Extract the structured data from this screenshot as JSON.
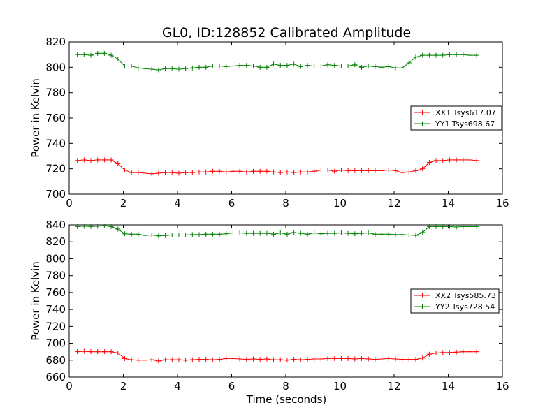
{
  "figure": {
    "title": "GL0, ID:128852 Calibrated Amplitude",
    "xlabel": "Time (seconds)"
  },
  "chart_data": [
    {
      "type": "line",
      "ylabel": "Power in Kelvin",
      "xlim": [
        0,
        16
      ],
      "ylim": [
        700,
        820
      ],
      "xticks": [
        "0",
        "2",
        "4",
        "6",
        "8",
        "10",
        "12",
        "14",
        "16"
      ],
      "yticks": [
        "700",
        "720",
        "740",
        "760",
        "780",
        "800",
        "820"
      ],
      "grid": false,
      "legend": "center-right",
      "x": [
        0.3,
        0.55,
        0.8,
        1.05,
        1.3,
        1.55,
        1.8,
        2.05,
        2.3,
        2.55,
        2.8,
        3.05,
        3.3,
        3.55,
        3.8,
        4.05,
        4.3,
        4.55,
        4.8,
        5.05,
        5.3,
        5.55,
        5.8,
        6.05,
        6.3,
        6.55,
        6.8,
        7.05,
        7.3,
        7.55,
        7.8,
        8.05,
        8.3,
        8.55,
        8.8,
        9.05,
        9.3,
        9.55,
        9.8,
        10.05,
        10.3,
        10.55,
        10.8,
        11.05,
        11.3,
        11.55,
        11.8,
        12.05,
        12.3,
        12.55,
        12.8,
        13.05,
        13.3,
        13.55,
        13.8,
        14.05,
        14.3,
        14.55,
        14.8,
        15.05
      ],
      "series": [
        {
          "name": "XX1 Tsys617.07",
          "color": "#ff0000",
          "values": [
            726.5,
            727,
            726.5,
            727,
            727,
            727,
            724,
            719,
            717,
            717,
            716.5,
            716,
            716.5,
            717,
            717,
            716.5,
            717,
            717,
            717.5,
            717.5,
            718,
            718,
            717.5,
            718,
            718,
            717.5,
            718,
            718,
            718,
            717.5,
            717,
            717.5,
            717,
            717.5,
            717.5,
            718,
            719,
            719,
            718,
            719,
            718.5,
            718.5,
            718.5,
            718.5,
            718.5,
            718.5,
            719,
            718.5,
            717,
            717.5,
            718.5,
            720,
            725,
            726.5,
            726.5,
            727,
            727,
            727,
            727,
            726.5
          ]
        },
        {
          "name": "YY1 Tsys698.67",
          "color": "#008000",
          "values": [
            810,
            810,
            809.5,
            811,
            811,
            809.5,
            806.5,
            801,
            801,
            799.5,
            799,
            798.5,
            798,
            799,
            799,
            798.5,
            799,
            799.5,
            800,
            800,
            801,
            801,
            800.5,
            801,
            801.5,
            801.5,
            801,
            800,
            800,
            802.5,
            801.5,
            801.5,
            802.5,
            800.5,
            801.5,
            801,
            801,
            802,
            801.5,
            801,
            801,
            802,
            800,
            801,
            800.5,
            800,
            800.5,
            799.5,
            799.5,
            803.5,
            808,
            809.5,
            809.5,
            809.5,
            809.5,
            810,
            810,
            810,
            809.5,
            809.5
          ]
        }
      ]
    },
    {
      "type": "line",
      "ylabel": "Power in Kelvin",
      "xlabel": "Time (seconds)",
      "xlim": [
        0,
        16
      ],
      "ylim": [
        660,
        840
      ],
      "xticks": [
        "0",
        "2",
        "4",
        "6",
        "8",
        "10",
        "12",
        "14",
        "16"
      ],
      "yticks": [
        "660",
        "680",
        "700",
        "720",
        "740",
        "760",
        "780",
        "800",
        "820",
        "840"
      ],
      "grid": false,
      "legend": "center-right",
      "x": [
        0.3,
        0.55,
        0.8,
        1.05,
        1.3,
        1.55,
        1.8,
        2.05,
        2.3,
        2.55,
        2.8,
        3.05,
        3.3,
        3.55,
        3.8,
        4.05,
        4.3,
        4.55,
        4.8,
        5.05,
        5.3,
        5.55,
        5.8,
        6.05,
        6.3,
        6.55,
        6.8,
        7.05,
        7.3,
        7.55,
        7.8,
        8.05,
        8.3,
        8.55,
        8.8,
        9.05,
        9.3,
        9.55,
        9.8,
        10.05,
        10.3,
        10.55,
        10.8,
        11.05,
        11.3,
        11.55,
        11.8,
        12.05,
        12.3,
        12.55,
        12.8,
        13.05,
        13.3,
        13.55,
        13.8,
        14.05,
        14.3,
        14.55,
        14.8,
        15.05
      ],
      "series": [
        {
          "name": "XX2 Tsys585.73",
          "color": "#ff0000",
          "values": [
            690,
            690.5,
            690,
            690,
            690,
            690,
            688.5,
            682,
            680.5,
            680,
            680,
            680.5,
            679,
            680.5,
            680.5,
            680.5,
            680,
            680.5,
            681,
            681,
            680.5,
            681,
            682,
            682,
            681.5,
            681,
            681.5,
            681,
            681.5,
            680.5,
            680.5,
            680,
            681,
            680.5,
            681,
            681.5,
            681.5,
            682,
            682,
            682,
            682,
            681.5,
            682,
            681.5,
            681,
            681.5,
            682,
            681.5,
            681,
            681,
            681,
            682.5,
            687,
            688.5,
            689,
            689,
            689.5,
            690,
            690,
            690
          ]
        },
        {
          "name": "YY2 Tsys728.54",
          "color": "#008000",
          "values": [
            838,
            838.5,
            838,
            838.5,
            839,
            838,
            835,
            829.5,
            829,
            829,
            827.5,
            828,
            827,
            827.5,
            828,
            828,
            828,
            828.5,
            828.5,
            829,
            829,
            829,
            829.5,
            830.5,
            830.5,
            830,
            830,
            830,
            830,
            829,
            830.5,
            829,
            831,
            830,
            829,
            830.5,
            829.5,
            830,
            830,
            830.5,
            830,
            829.5,
            830,
            830.5,
            829,
            829,
            829,
            828.5,
            828.5,
            828,
            827.5,
            831,
            838,
            838,
            838,
            838,
            837.5,
            838,
            838,
            838
          ]
        }
      ]
    }
  ]
}
